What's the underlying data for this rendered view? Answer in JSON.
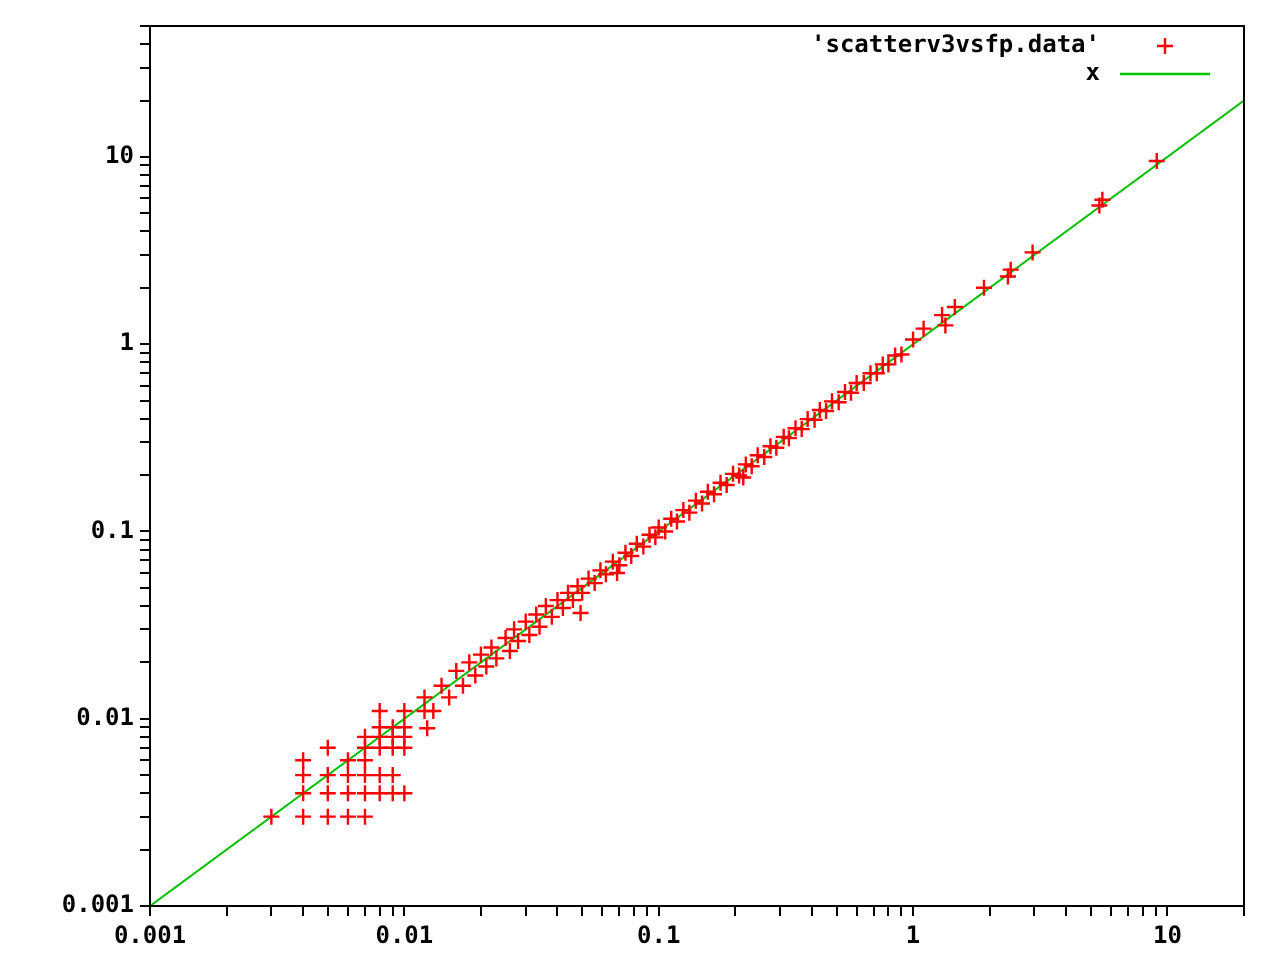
{
  "chart_data": {
    "type": "scatter",
    "log": "xy",
    "legend": "top right",
    "xlim": [
      0.001,
      20
    ],
    "ylim": [
      0.001,
      50
    ],
    "xticks": [
      0.001,
      {
        "value": 0.002,
        "label": null
      },
      {
        "value": 0.003,
        "label": null
      },
      {
        "value": 0.004,
        "label": null
      },
      {
        "value": 0.005,
        "label": null
      },
      {
        "value": 0.006,
        "label": null
      },
      {
        "value": 0.007,
        "label": null
      },
      {
        "value": 0.008,
        "label": null
      },
      {
        "value": 0.009,
        "label": null
      },
      0.01,
      {
        "value": 0.02,
        "label": null
      },
      {
        "value": 0.03,
        "label": null
      },
      {
        "value": 0.04,
        "label": null
      },
      {
        "value": 0.05,
        "label": null
      },
      {
        "value": 0.06,
        "label": null
      },
      {
        "value": 0.07,
        "label": null
      },
      {
        "value": 0.08,
        "label": null
      },
      {
        "value": 0.09,
        "label": null
      },
      0.1,
      {
        "value": 0.2,
        "label": null
      },
      {
        "value": 0.3,
        "label": null
      },
      {
        "value": 0.4,
        "label": null
      },
      {
        "value": 0.5,
        "label": null
      },
      {
        "value": 0.6,
        "label": null
      },
      {
        "value": 0.7,
        "label": null
      },
      {
        "value": 0.8,
        "label": null
      },
      {
        "value": 0.9,
        "label": null
      },
      1,
      {
        "value": 2,
        "label": null
      },
      {
        "value": 3,
        "label": null
      },
      {
        "value": 4,
        "label": null
      },
      {
        "value": 5,
        "label": null
      },
      {
        "value": 6,
        "label": null
      },
      {
        "value": 7,
        "label": null
      },
      {
        "value": 8,
        "label": null
      },
      {
        "value": 9,
        "label": null
      },
      10,
      {
        "value": 20,
        "label": null
      }
    ],
    "yticks": [
      0.001,
      {
        "value": 0.002,
        "label": null
      },
      {
        "value": 0.003,
        "label": null
      },
      {
        "value": 0.004,
        "label": null
      },
      {
        "value": 0.005,
        "label": null
      },
      {
        "value": 0.006,
        "label": null
      },
      {
        "value": 0.007,
        "label": null
      },
      {
        "value": 0.008,
        "label": null
      },
      {
        "value": 0.009,
        "label": null
      },
      0.01,
      {
        "value": 0.02,
        "label": null
      },
      {
        "value": 0.03,
        "label": null
      },
      {
        "value": 0.04,
        "label": null
      },
      {
        "value": 0.05,
        "label": null
      },
      {
        "value": 0.06,
        "label": null
      },
      {
        "value": 0.07,
        "label": null
      },
      {
        "value": 0.08,
        "label": null
      },
      {
        "value": 0.09,
        "label": null
      },
      0.1,
      {
        "value": 0.2,
        "label": null
      },
      {
        "value": 0.3,
        "label": null
      },
      {
        "value": 0.4,
        "label": null
      },
      {
        "value": 0.5,
        "label": null
      },
      {
        "value": 0.6,
        "label": null
      },
      {
        "value": 0.7,
        "label": null
      },
      {
        "value": 0.8,
        "label": null
      },
      {
        "value": 0.9,
        "label": null
      },
      1,
      {
        "value": 2,
        "label": null
      },
      {
        "value": 3,
        "label": null
      },
      {
        "value": 4,
        "label": null
      },
      {
        "value": 5,
        "label": null
      },
      {
        "value": 6,
        "label": null
      },
      {
        "value": 7,
        "label": null
      },
      {
        "value": 8,
        "label": null
      },
      {
        "value": 9,
        "label": null
      },
      10,
      {
        "value": 20,
        "label": null
      },
      {
        "value": 30,
        "label": null
      },
      {
        "value": 40,
        "label": null
      },
      {
        "value": 50,
        "label": null
      }
    ],
    "series": [
      {
        "name": "'scatterv3vsfp.data'",
        "type": "scatter",
        "marker": "cross",
        "color": "#ff0000",
        "x": [
          0.003,
          0.004,
          0.005,
          0.006,
          0.007,
          0.004,
          0.005,
          0.006,
          0.007,
          0.008,
          0.009,
          0.01,
          0.004,
          0.005,
          0.006,
          0.007,
          0.008,
          0.009,
          0.004,
          0.006,
          0.007,
          0.005,
          0.007,
          0.008,
          0.009,
          0.01,
          0.007,
          0.008,
          0.009,
          0.01,
          0.008,
          0.009,
          0.01,
          0.008,
          0.01,
          0.012,
          0.0123,
          0.012,
          0.013,
          0.014,
          0.015,
          0.016,
          0.017,
          0.018,
          0.019,
          0.02,
          0.021,
          0.022,
          0.023,
          0.025,
          0.026,
          0.027,
          0.028,
          0.03,
          0.031,
          0.033,
          0.034,
          0.036,
          0.038,
          0.04,
          0.042,
          0.044,
          0.046,
          0.048,
          0.0493,
          0.05,
          0.053,
          0.056,
          0.059,
          0.062,
          0.066,
          0.0686,
          0.07,
          0.074,
          0.078,
          0.082,
          0.087,
          0.092,
          0.097,
          0.1,
          0.106,
          0.112,
          0.118,
          0.125,
          0.132,
          0.14,
          0.148,
          0.156,
          0.165,
          0.175,
          0.185,
          0.196,
          0.207,
          0.215,
          0.22,
          0.232,
          0.245,
          0.26,
          0.275,
          0.29,
          0.31,
          0.325,
          0.345,
          0.365,
          0.385,
          0.41,
          0.43,
          0.455,
          0.48,
          0.51,
          0.54,
          0.57,
          0.6,
          0.64,
          0.68,
          0.72,
          0.76,
          0.8,
          0.85,
          0.9,
          1.0,
          1.1,
          1.3,
          1.34,
          1.46,
          1.9,
          2.36,
          2.42,
          2.95,
          5.4,
          5.55,
          9.08
        ],
        "values": [
          0.003,
          0.003,
          0.003,
          0.003,
          0.003,
          0.004,
          0.004,
          0.004,
          0.004,
          0.004,
          0.004,
          0.004,
          0.005,
          0.005,
          0.005,
          0.005,
          0.005,
          0.005,
          0.006,
          0.006,
          0.006,
          0.007,
          0.007,
          0.007,
          0.007,
          0.007,
          0.008,
          0.008,
          0.008,
          0.008,
          0.009,
          0.009,
          0.009,
          0.011,
          0.011,
          0.011,
          0.0089,
          0.013,
          0.011,
          0.015,
          0.013,
          0.018,
          0.015,
          0.02,
          0.017,
          0.022,
          0.019,
          0.024,
          0.021,
          0.027,
          0.023,
          0.03,
          0.026,
          0.033,
          0.028,
          0.036,
          0.031,
          0.04,
          0.035,
          0.043,
          0.039,
          0.047,
          0.043,
          0.051,
          0.0367,
          0.047,
          0.056,
          0.053,
          0.062,
          0.059,
          0.069,
          0.06,
          0.066,
          0.077,
          0.074,
          0.086,
          0.083,
          0.096,
          0.093,
          0.105,
          0.1,
          0.117,
          0.113,
          0.13,
          0.126,
          0.146,
          0.141,
          0.163,
          0.158,
          0.182,
          0.177,
          0.203,
          0.199,
          0.194,
          0.228,
          0.223,
          0.255,
          0.25,
          0.285,
          0.28,
          0.32,
          0.315,
          0.356,
          0.352,
          0.398,
          0.395,
          0.445,
          0.44,
          0.495,
          0.49,
          0.555,
          0.55,
          0.62,
          0.62,
          0.7,
          0.7,
          0.78,
          0.78,
          0.87,
          0.88,
          1.06,
          1.21,
          1.43,
          1.26,
          1.58,
          2.0,
          2.3,
          2.5,
          3.09,
          5.5,
          5.9,
          9.5
        ]
      },
      {
        "name": "x",
        "type": "line",
        "marker": "none",
        "color": "#00c000",
        "x": [
          0.001,
          20
        ],
        "values": [
          0.001,
          20
        ]
      }
    ]
  }
}
